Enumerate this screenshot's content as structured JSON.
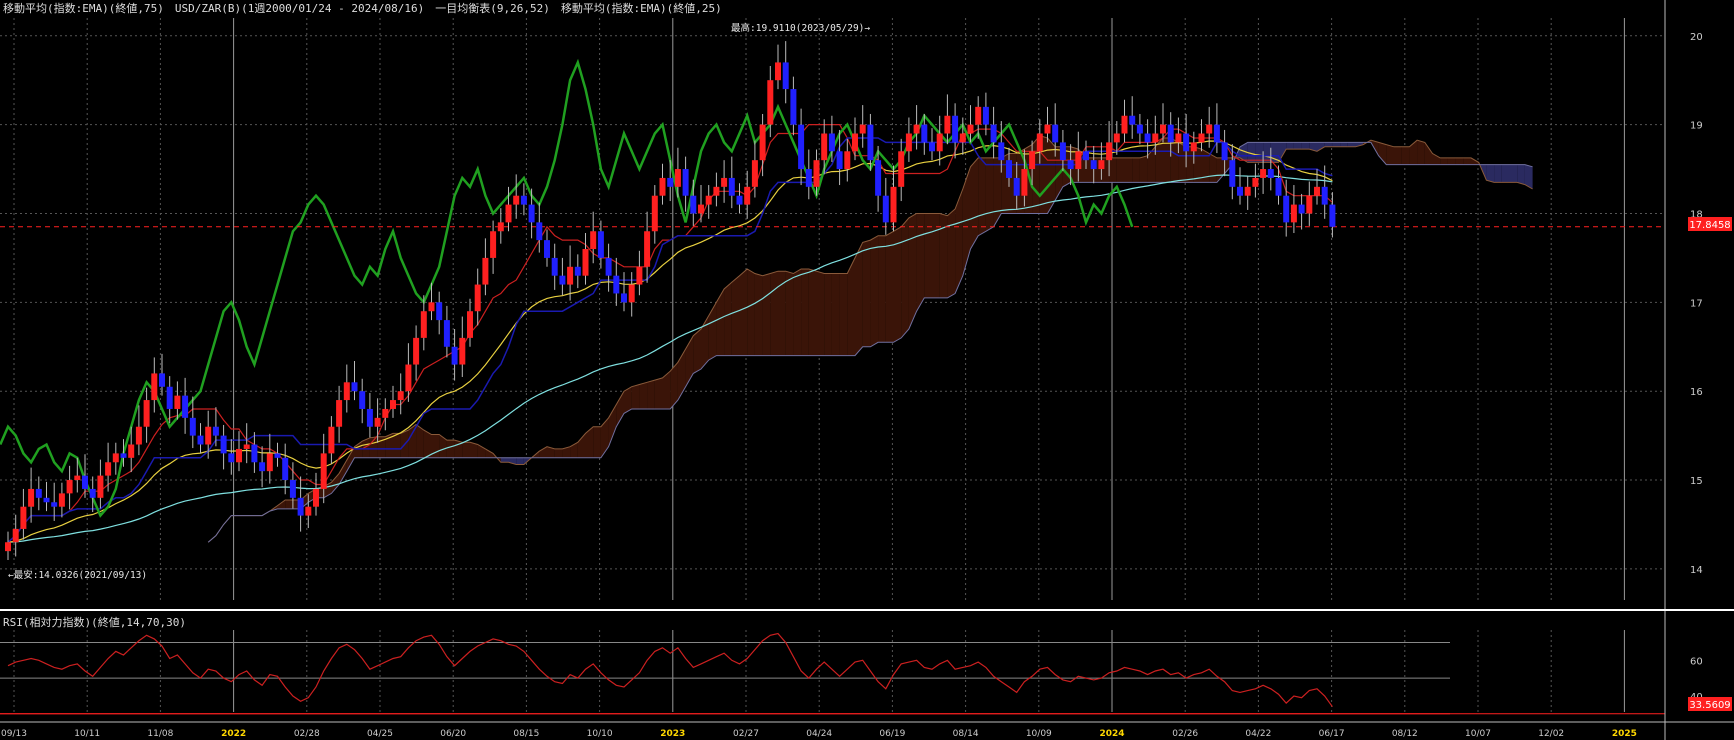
{
  "header": {
    "main_title": "移動平均(指数:EMA)(終値,75)　USD/ZAR(B)(1週2000/01/24 - 2024/08/16)　一目均衡表(9,26,52)　移動平均(指数:EMA)(終値,25)",
    "rsi_title": "RSI(相対力指数)(終値,14,70,30)"
  },
  "annotations": {
    "high_label": "最高:19.9110(2023/05/29)→",
    "low_label": "←最安:14.0326(2021/09/13)"
  },
  "price_labels": {
    "last_price": "17.8458",
    "last_rsi": "33.5609"
  },
  "colors": {
    "background": "#000000",
    "candle_up": "#ff2020",
    "candle_down": "#2020ff",
    "ema75": "#7fe0e0",
    "ema25": "#e8d040",
    "tenkan": "#cc2020",
    "kijun": "#1a1ab0",
    "chikou": "#20a020",
    "kumo_bull": "#3a1408",
    "kumo_bear": "#2a2a60",
    "rsi_line": "#cc2020",
    "price_marker": "#ff2020"
  },
  "chart_data": [
    {
      "type": "candlestick",
      "title": "USD/ZAR(B)(1週2000/01/24 - 2024/08/16)",
      "ylim": [
        13.65,
        20.2
      ],
      "y_ticks": [
        14,
        15,
        16,
        17,
        18,
        19,
        20
      ],
      "x_ticks": [
        {
          "label": "09/13",
          "year": false
        },
        {
          "label": "10/11",
          "year": false
        },
        {
          "label": "11/08",
          "year": false
        },
        {
          "label": "2022",
          "year": true
        },
        {
          "label": "02/28",
          "year": false
        },
        {
          "label": "04/25",
          "year": false
        },
        {
          "label": "06/20",
          "year": false
        },
        {
          "label": "08/15",
          "year": false
        },
        {
          "label": "10/10",
          "year": false
        },
        {
          "label": "2023",
          "year": true
        },
        {
          "label": "02/27",
          "year": false
        },
        {
          "label": "04/24",
          "year": false
        },
        {
          "label": "06/19",
          "year": false
        },
        {
          "label": "08/14",
          "year": false
        },
        {
          "label": "10/09",
          "year": false
        },
        {
          "label": "2024",
          "year": true
        },
        {
          "label": "02/26",
          "year": false
        },
        {
          "label": "04/22",
          "year": false
        },
        {
          "label": "06/17",
          "year": false
        },
        {
          "label": "08/12",
          "year": false
        },
        {
          "label": "10/07",
          "year": false
        },
        {
          "label": "12/02",
          "year": false
        },
        {
          "label": "2025",
          "year": true
        }
      ],
      "year_ticks": [
        "2022",
        "2023",
        "2024",
        "2025"
      ],
      "closes": [
        14.3,
        14.45,
        14.7,
        14.9,
        14.8,
        14.75,
        14.7,
        14.85,
        15.0,
        15.05,
        14.9,
        14.8,
        15.05,
        15.2,
        15.3,
        15.25,
        15.4,
        15.6,
        15.9,
        16.2,
        16.05,
        15.8,
        15.95,
        15.7,
        15.5,
        15.4,
        15.6,
        15.5,
        15.3,
        15.2,
        15.35,
        15.4,
        15.2,
        15.1,
        15.3,
        15.25,
        15.0,
        14.8,
        14.6,
        14.7,
        14.9,
        15.3,
        15.6,
        15.9,
        16.1,
        16.0,
        15.8,
        15.6,
        15.7,
        15.8,
        15.9,
        16.0,
        16.3,
        16.6,
        16.9,
        17.0,
        16.8,
        16.5,
        16.3,
        16.6,
        16.9,
        17.2,
        17.5,
        17.8,
        17.9,
        18.1,
        18.2,
        18.1,
        17.9,
        17.7,
        17.5,
        17.3,
        17.2,
        17.4,
        17.3,
        17.6,
        17.8,
        17.5,
        17.3,
        17.1,
        17.0,
        17.2,
        17.4,
        17.8,
        18.2,
        18.4,
        18.3,
        18.5,
        18.2,
        18.0,
        18.1,
        18.2,
        18.3,
        18.4,
        18.2,
        18.1,
        18.3,
        18.6,
        19.0,
        19.5,
        19.7,
        19.4,
        19.0,
        18.5,
        18.3,
        18.6,
        18.9,
        18.7,
        18.5,
        18.7,
        18.9,
        19.0,
        18.6,
        18.2,
        17.9,
        18.3,
        18.7,
        18.9,
        19.0,
        18.8,
        18.7,
        18.9,
        19.1,
        18.8,
        18.9,
        19.0,
        19.2,
        19.0,
        18.8,
        18.6,
        18.4,
        18.2,
        18.5,
        18.7,
        18.9,
        19.0,
        18.8,
        18.6,
        18.5,
        18.7,
        18.6,
        18.5,
        18.6,
        18.8,
        18.9,
        19.1,
        19.0,
        18.9,
        18.8,
        18.9,
        19.0,
        18.8,
        18.9,
        18.7,
        18.8,
        18.9,
        19.0,
        18.8,
        18.6,
        18.3,
        18.2,
        18.3,
        18.4,
        18.5,
        18.4,
        18.2,
        17.9,
        18.1,
        18.0,
        18.2,
        18.3,
        18.1,
        17.85
      ],
      "highs_lows_visible": true,
      "series": [
        {
          "name": "移動平均(指数:EMA)(終値,75)"
        },
        {
          "name": "移動平均(指数:EMA)(終値,25)"
        },
        {
          "name": "一目均衡表(9,26,52)"
        }
      ]
    },
    {
      "type": "line",
      "title": "RSI(相対力指数)(終値,14,70,30)",
      "ylim": [
        31,
        77
      ],
      "y_ticks": [
        40,
        60
      ],
      "levels": [
        70,
        50,
        30
      ],
      "values": [
        57,
        59,
        60,
        61,
        60,
        58,
        56,
        55,
        57,
        58,
        54,
        51,
        56,
        61,
        65,
        63,
        67,
        71,
        74,
        72,
        68,
        61,
        63,
        58,
        53,
        50,
        55,
        54,
        50,
        48,
        52,
        54,
        49,
        46,
        52,
        51,
        45,
        40,
        37,
        39,
        45,
        54,
        61,
        67,
        69,
        66,
        61,
        55,
        57,
        59,
        61,
        62,
        67,
        71,
        73,
        74,
        69,
        62,
        57,
        61,
        65,
        68,
        70,
        72,
        71,
        69,
        68,
        65,
        60,
        55,
        51,
        48,
        47,
        52,
        50,
        55,
        58,
        53,
        49,
        46,
        45,
        49,
        53,
        60,
        65,
        67,
        64,
        67,
        61,
        56,
        58,
        60,
        62,
        64,
        60,
        58,
        61,
        66,
        71,
        74,
        75,
        70,
        62,
        54,
        50,
        55,
        59,
        55,
        51,
        55,
        59,
        60,
        54,
        48,
        44,
        52,
        58,
        59,
        60,
        56,
        55,
        58,
        60,
        55,
        56,
        57,
        59,
        56,
        51,
        48,
        45,
        42,
        48,
        51,
        55,
        56,
        52,
        49,
        48,
        51,
        50,
        49,
        50,
        53,
        54,
        56,
        55,
        54,
        52,
        54,
        55,
        52,
        53,
        50,
        52,
        53,
        55,
        51,
        48,
        43,
        42,
        43,
        44,
        46,
        44,
        41,
        36,
        40,
        39,
        43,
        44,
        40,
        34
      ]
    }
  ]
}
